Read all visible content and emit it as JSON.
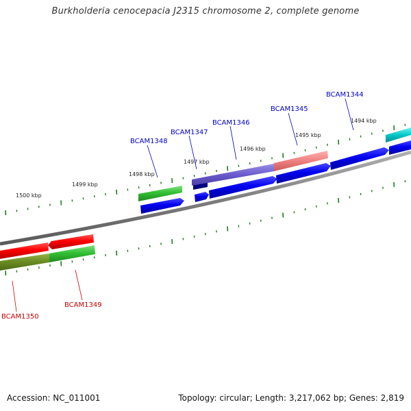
{
  "title": "Burkholderia cenocepacia J2315 chromosome 2, complete genome",
  "accession": "Accession: NC_011001",
  "topology": "Topology: circular; Length: 3,217,062 bp; Genes: 2,819",
  "kbp_labels": [
    "1500 kbp",
    "1499 kbp",
    "1498 kbp",
    "1497 kbp",
    "1496 kbp",
    "1495 kbp",
    "1494 kbp"
  ],
  "genes": {
    "g1344": {
      "label": "BCAM1344",
      "color": "#0000cc"
    },
    "g1345": {
      "label": "BCAM1345",
      "color": "#0000cc"
    },
    "g1346": {
      "label": "BCAM1346",
      "color": "#0000cc"
    },
    "g1347": {
      "label": "BCAM1347",
      "color": "#0000cc"
    },
    "g1348": {
      "label": "BCAM1348",
      "color": "#0000cc"
    },
    "g1349": {
      "label": "BCAM1349",
      "color": "#cc0000"
    },
    "g1350": {
      "label": "BCAM1350",
      "color": "#cc0000"
    }
  },
  "colors": {
    "backbone": "#808080",
    "tick": "#1a7a1a",
    "forward_gene": "#0000e6",
    "reverse_gene": "#e60000",
    "green_feature": "#33bb33",
    "olive_feature": "#6b8e23",
    "purple_feature": "#6a5acd",
    "pink_feature": "#f08080",
    "cyan_feature": "#00c8c8"
  }
}
